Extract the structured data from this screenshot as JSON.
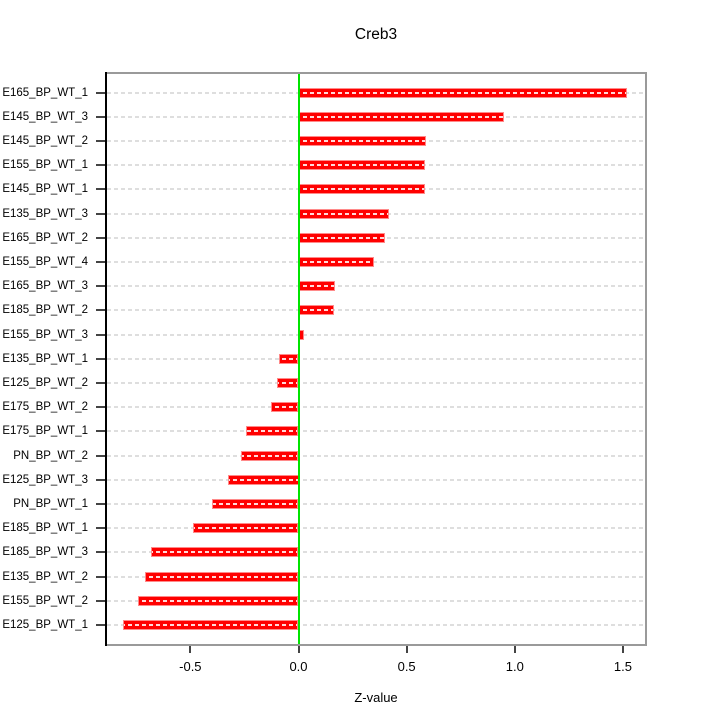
{
  "title": "Creb3",
  "xlabel": "Z-value",
  "chart_data": {
    "type": "bar",
    "orientation": "horizontal",
    "title": "Creb3",
    "xlabel": "Z-value",
    "categories": [
      "E165_BP_WT_1",
      "E145_BP_WT_3",
      "E145_BP_WT_2",
      "E155_BP_WT_1",
      "E145_BP_WT_1",
      "E135_BP_WT_3",
      "E165_BP_WT_2",
      "E155_BP_WT_4",
      "E165_BP_WT_3",
      "E185_BP_WT_2",
      "E155_BP_WT_3",
      "E135_BP_WT_1",
      "E125_BP_WT_2",
      "E175_BP_WT_2",
      "E175_BP_WT_1",
      "PN_BP_WT_2",
      "E125_BP_WT_3",
      "PN_BP_WT_1",
      "E185_BP_WT_1",
      "E185_BP_WT_3",
      "E135_BP_WT_2",
      "E155_BP_WT_2",
      "E125_BP_WT_1"
    ],
    "values": [
      1.52,
      0.95,
      0.59,
      0.585,
      0.585,
      0.42,
      0.4,
      0.35,
      0.17,
      0.165,
      0.025,
      -0.09,
      -0.1,
      -0.125,
      -0.245,
      -0.265,
      -0.325,
      -0.4,
      -0.49,
      -0.68,
      -0.71,
      -0.74,
      -0.81
    ],
    "x_ticks": [
      -0.5,
      0.0,
      0.5,
      1.0,
      1.5
    ],
    "x_tick_labels": [
      "-0.5",
      "0.0",
      "0.5",
      "1.0",
      "1.5"
    ],
    "xlim": [
      -0.8946,
      1.6112
    ],
    "zero_reference_line": 0,
    "grid": "dashed-horizontal-per-row",
    "legend": "none"
  },
  "colors": {
    "bar_fill": "#ff0000",
    "bar_edge": "#ff8a8a",
    "bar_center_dash": "rgba(255,255,255,0.85)",
    "zero_line": "#00e400",
    "grid_dash": "#dedede",
    "panel_border": "#9a9a9a",
    "y_axis_line": "#000000",
    "tick": "#444444",
    "text": "#000000",
    "background": "#ffffff"
  }
}
